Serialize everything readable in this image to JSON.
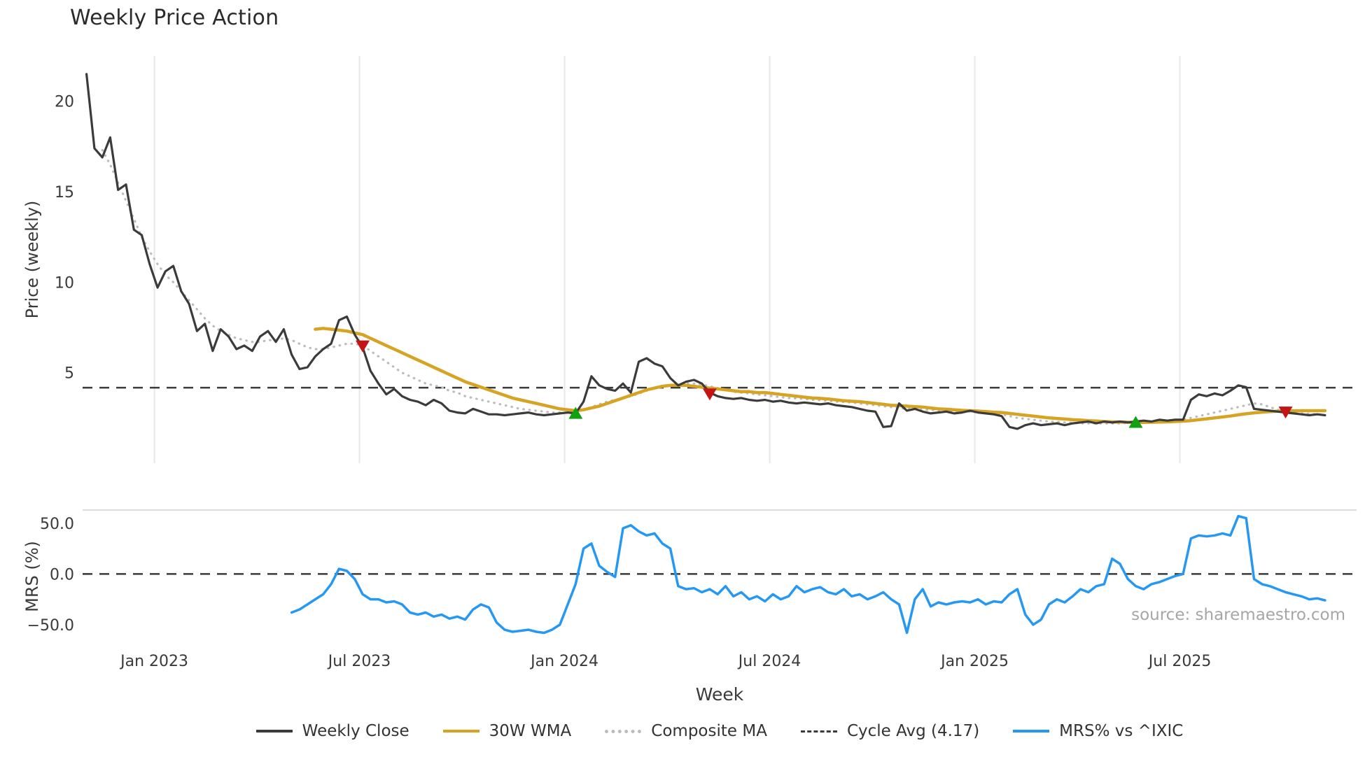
{
  "title": "Weekly Price Action",
  "xlabel": "Week",
  "source_watermark": "source: sharemaestro.com",
  "legend": [
    {
      "label": "Weekly Close",
      "swatch": "solid",
      "color": "#3b3b3b"
    },
    {
      "label": "30W WMA",
      "swatch": "solid",
      "color": "#d6a323"
    },
    {
      "label": "Composite MA",
      "swatch": "dotted",
      "color": "#bcbcbc"
    },
    {
      "label": "Cycle Avg (4.17)",
      "swatch": "dashed",
      "color": "#3b3b3b"
    },
    {
      "label": "MRS% vs ^IXIC",
      "swatch": "solid",
      "color": "#2598f5"
    }
  ],
  "chart_data": [
    {
      "type": "line",
      "panel": "price",
      "title": "Weekly Price Action",
      "ylabel": "Price (weekly)",
      "ylim": [
        0,
        22.5
      ],
      "yticks": [
        5,
        10,
        15,
        20
      ],
      "ytick_labels": [
        "5",
        "10",
        "15",
        "20"
      ],
      "xlim": [
        -0.5,
        161
      ],
      "x_unit": "week_index_from_2022-11",
      "xticks": {
        "weeks": [
          8.6,
          34.6,
          60.6,
          86.6,
          112.6,
          138.6
        ],
        "labels": [
          "Jan 2023",
          "Jul 2023",
          "Jan 2024",
          "Jul 2024",
          "Jan 2025",
          "Jul 2025"
        ]
      },
      "grid": "vertical",
      "cycle_avg": 4.17,
      "series": [
        {
          "name": "Weekly Close",
          "color": "#3b3b3b",
          "style": "solid",
          "width": 3.2,
          "start_week": 0,
          "values": [
            21.5,
            17.4,
            16.9,
            18.0,
            15.1,
            15.4,
            12.9,
            12.6,
            11.0,
            9.7,
            10.6,
            10.9,
            9.5,
            8.8,
            7.3,
            7.7,
            6.2,
            7.4,
            7.0,
            6.3,
            6.5,
            6.2,
            7.0,
            7.3,
            6.7,
            7.4,
            6.0,
            5.2,
            5.3,
            5.9,
            6.3,
            6.6,
            7.9,
            8.1,
            7.1,
            6.4,
            5.1,
            4.4,
            3.8,
            4.1,
            3.7,
            3.5,
            3.4,
            3.2,
            3.5,
            3.3,
            2.9,
            2.8,
            2.75,
            3.0,
            2.85,
            2.7,
            2.7,
            2.65,
            2.7,
            2.75,
            2.8,
            2.7,
            2.65,
            2.7,
            2.75,
            2.8,
            2.75,
            3.4,
            4.8,
            4.3,
            4.1,
            4.0,
            4.4,
            3.9,
            5.6,
            5.8,
            5.5,
            5.35,
            4.7,
            4.3,
            4.5,
            4.6,
            4.4,
            3.9,
            3.7,
            3.6,
            3.55,
            3.6,
            3.5,
            3.45,
            3.5,
            3.4,
            3.45,
            3.35,
            3.3,
            3.35,
            3.3,
            3.25,
            3.3,
            3.2,
            3.15,
            3.1,
            3.0,
            2.9,
            2.85,
            2.0,
            2.05,
            3.3,
            2.9,
            3.0,
            2.85,
            2.75,
            2.8,
            2.85,
            2.75,
            2.8,
            2.9,
            2.8,
            2.75,
            2.7,
            2.6,
            2.0,
            1.9,
            2.1,
            2.2,
            2.1,
            2.15,
            2.2,
            2.1,
            2.2,
            2.25,
            2.3,
            2.2,
            2.3,
            2.25,
            2.3,
            2.25,
            2.3,
            2.35,
            2.3,
            2.4,
            2.35,
            2.4,
            2.4,
            3.5,
            3.8,
            3.7,
            3.85,
            3.75,
            4.0,
            4.3,
            4.2,
            3.0,
            2.95,
            2.9,
            2.85,
            2.8,
            2.75,
            2.7,
            2.65,
            2.7,
            2.65
          ]
        },
        {
          "name": "30W WMA",
          "color": "#d6a323",
          "style": "solid",
          "width": 4.5,
          "start_week": 29,
          "values": [
            7.4,
            7.45,
            7.4,
            7.35,
            7.3,
            7.2,
            7.1,
            6.9,
            6.7,
            6.5,
            6.3,
            6.1,
            5.9,
            5.7,
            5.5,
            5.3,
            5.1,
            4.9,
            4.7,
            4.5,
            4.35,
            4.2,
            4.05,
            3.9,
            3.75,
            3.6,
            3.5,
            3.4,
            3.3,
            3.2,
            3.1,
            3.0,
            2.95,
            2.9,
            2.95,
            3.05,
            3.15,
            3.3,
            3.45,
            3.6,
            3.75,
            3.9,
            4.05,
            4.15,
            4.25,
            4.3,
            4.3,
            4.3,
            4.25,
            4.2,
            4.15,
            4.1,
            4.05,
            4.0,
            3.95,
            3.95,
            3.9,
            3.9,
            3.85,
            3.8,
            3.75,
            3.7,
            3.65,
            3.6,
            3.58,
            3.55,
            3.5,
            3.45,
            3.42,
            3.4,
            3.35,
            3.3,
            3.25,
            3.2,
            3.18,
            3.15,
            3.12,
            3.1,
            3.05,
            3.0,
            2.98,
            2.95,
            2.92,
            2.9,
            2.88,
            2.85,
            2.82,
            2.8,
            2.75,
            2.7,
            2.65,
            2.6,
            2.55,
            2.5,
            2.47,
            2.44,
            2.4,
            2.38,
            2.35,
            2.33,
            2.3,
            2.28,
            2.27,
            2.26,
            2.25,
            2.25,
            2.26,
            2.27,
            2.28,
            2.3,
            2.32,
            2.35,
            2.4,
            2.45,
            2.5,
            2.55,
            2.6,
            2.67,
            2.73,
            2.78,
            2.82,
            2.85,
            2.87,
            2.88,
            2.89,
            2.9,
            2.9,
            2.9,
            2.9
          ]
        },
        {
          "name": "Composite MA",
          "color": "#bcbcbc",
          "style": "dotted",
          "width": 3.2,
          "start_week": 2,
          "values": [
            17.3,
            16.5,
            15.5,
            14.5,
            13.5,
            12.5,
            11.7,
            11.0,
            10.4,
            10.0,
            9.5,
            9.0,
            8.5,
            8.0,
            7.6,
            7.3,
            7.1,
            6.9,
            6.8,
            6.7,
            6.7,
            6.8,
            6.8,
            6.9,
            6.8,
            6.6,
            6.4,
            6.3,
            6.3,
            6.4,
            6.5,
            6.6,
            6.6,
            6.5,
            6.2,
            5.9,
            5.6,
            5.3,
            5.0,
            4.8,
            4.6,
            4.4,
            4.3,
            4.2,
            4.0,
            3.9,
            3.7,
            3.6,
            3.5,
            3.4,
            3.3,
            3.2,
            3.1,
            3.0,
            2.95,
            2.9,
            2.85,
            2.8,
            2.8,
            2.8,
            2.85,
            2.95,
            3.1,
            3.25,
            3.4,
            3.5,
            3.6,
            3.7,
            3.85,
            4.0,
            4.15,
            4.25,
            4.3,
            4.35,
            4.4,
            4.4,
            4.35,
            4.25,
            4.15,
            4.05,
            3.95,
            3.9,
            3.85,
            3.8,
            3.75,
            3.7,
            3.65,
            3.6,
            3.58,
            3.55,
            3.5,
            3.48,
            3.45,
            3.4,
            3.38,
            3.35,
            3.3,
            3.25,
            3.2,
            3.15,
            3.1,
            3.05,
            3.0,
            3.0,
            2.95,
            2.95,
            2.9,
            2.9,
            2.85,
            2.85,
            2.85,
            2.8,
            2.8,
            2.75,
            2.7,
            2.6,
            2.5,
            2.45,
            2.4,
            2.35,
            2.3,
            2.28,
            2.25,
            2.23,
            2.2,
            2.2,
            2.2,
            2.2,
            2.2,
            2.2,
            2.22,
            2.24,
            2.26,
            2.28,
            2.3,
            2.32,
            2.35,
            2.4,
            2.5,
            2.6,
            2.7,
            2.8,
            2.9,
            3.0,
            3.1,
            3.2,
            3.3,
            3.25,
            3.1,
            2.95,
            2.85,
            2.8,
            2.75,
            2.72,
            2.7,
            2.68
          ]
        }
      ],
      "hlines": [
        {
          "name": "Cycle Avg (4.17)",
          "value": 4.17,
          "color": "#3b3b3b",
          "style": "dashed",
          "width": 2.6
        }
      ],
      "markers": {
        "sell": {
          "shape": "triangle-down",
          "color": "#c41414",
          "points": [
            [
              35,
              6.45
            ],
            [
              79,
              3.8
            ],
            [
              152,
              2.8
            ]
          ]
        },
        "buy": {
          "shape": "triangle-up",
          "color": "#10a010",
          "points": [
            [
              62,
              2.78
            ],
            [
              133,
              2.28
            ]
          ]
        }
      }
    },
    {
      "type": "line",
      "panel": "mrs",
      "ylabel": "MRS (%)",
      "ylim": [
        -68,
        63
      ],
      "yticks": [
        -50,
        0,
        50
      ],
      "ytick_labels": [
        "−50.0",
        "0.0",
        "50.0"
      ],
      "hlines": [
        {
          "name": "zero-line",
          "value": 0,
          "color": "#3b3b3b",
          "style": "dashed",
          "width": 2.6
        }
      ],
      "series": [
        {
          "name": "MRS% vs ^IXIC",
          "color": "#2598f5",
          "style": "solid",
          "width": 3.5,
          "start_week": 26,
          "values": [
            -38,
            -35,
            -30,
            -25,
            -20,
            -10,
            5,
            3,
            -5,
            -20,
            -25,
            -25,
            -28,
            -27,
            -30,
            -38,
            -40,
            -38,
            -42,
            -40,
            -44,
            -42,
            -45,
            -35,
            -30,
            -33,
            -48,
            -55,
            -57,
            -56,
            -55,
            -57,
            -58,
            -55,
            -50,
            -30,
            -10,
            25,
            30,
            8,
            2,
            -3,
            45,
            48,
            42,
            38,
            40,
            30,
            25,
            -12,
            -15,
            -14,
            -18,
            -15,
            -20,
            -12,
            -22,
            -18,
            -25,
            -22,
            -27,
            -20,
            -25,
            -22,
            -12,
            -18,
            -15,
            -13,
            -18,
            -20,
            -15,
            -22,
            -20,
            -25,
            -22,
            -18,
            -25,
            -30,
            -58,
            -25,
            -15,
            -32,
            -28,
            -30,
            -28,
            -27,
            -28,
            -25,
            -30,
            -27,
            -28,
            -20,
            -15,
            -40,
            -50,
            -45,
            -30,
            -25,
            -28,
            -22,
            -15,
            -18,
            -12,
            -10,
            15,
            10,
            -5,
            -12,
            -15,
            -10,
            -8,
            -5,
            -2,
            0,
            35,
            38,
            37,
            38,
            40,
            38,
            57,
            55,
            -5,
            -10,
            -12,
            -15,
            -18,
            -20,
            -22,
            -25,
            -24,
            -26
          ]
        }
      ]
    }
  ]
}
